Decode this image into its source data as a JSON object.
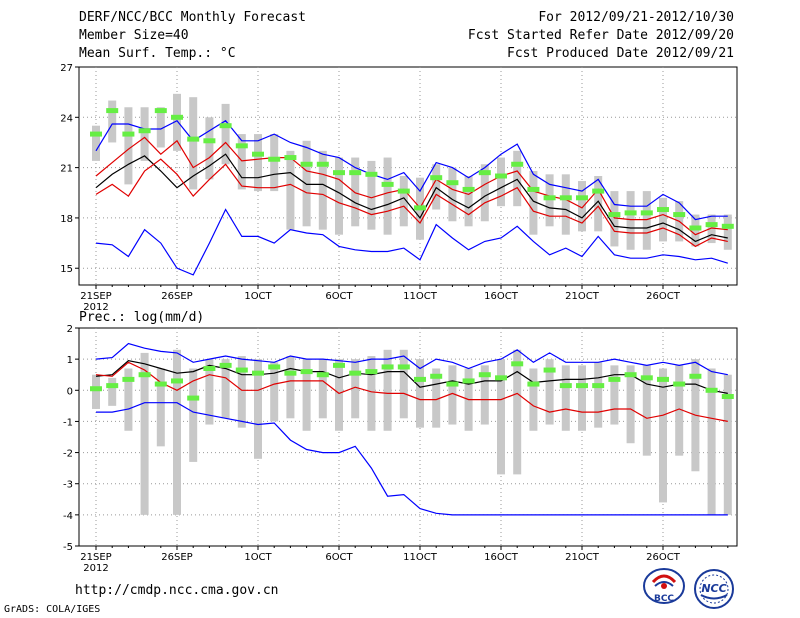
{
  "header": {
    "title": "DERF/NCC/BCC Monthly Forecast",
    "member_size": "Member Size=40",
    "variable": "Mean Surf. Temp.: °C",
    "period": "For 2012/09/21-2012/10/30",
    "refer_date": "Fcst Started Refer Date 2012/09/20",
    "produced_date": "Fcst Produced Date 2012/09/21"
  },
  "footer": {
    "url": "http://cmdp.ncc.cma.gov.cn",
    "credit": "GrADS: COLA/IGES",
    "logo_bcc": "BCC",
    "logo_ncc": "NCC"
  },
  "colors": {
    "max_min_line": "#0000ff",
    "mean_line": "#000000",
    "ctrl_line": "#e00000",
    "box": "#c8c8c8",
    "member_marker": "#66ee44"
  },
  "chart_data": [
    {
      "type": "line",
      "title": "Mean Surf. Temp.: °C",
      "xlabel": "",
      "ylabel": "",
      "ylim": [
        14,
        27
      ],
      "yticks": [
        15,
        18,
        21,
        24,
        27
      ],
      "grid": true,
      "x_tick_labels": [
        "21SEP",
        "26SEP",
        "1OCT",
        "6OCT",
        "11OCT",
        "16OCT",
        "21OCT",
        "26OCT"
      ],
      "x_tick_days": [
        0,
        5,
        10,
        15,
        20,
        25,
        30,
        35
      ],
      "x_year_label": "2012",
      "days": 40,
      "series": [
        {
          "name": "max",
          "color": "#0000ff",
          "values": [
            22.0,
            23.6,
            23.6,
            23.3,
            23.3,
            23.8,
            22.6,
            23.2,
            23.8,
            22.6,
            22.6,
            23.0,
            22.5,
            22.2,
            21.8,
            21.6,
            21.0,
            20.6,
            20.3,
            20.7,
            19.6,
            21.3,
            21.0,
            20.4,
            21.0,
            21.8,
            22.4,
            20.6,
            20.0,
            19.8,
            19.6,
            20.3,
            18.8,
            18.7,
            18.7,
            19.4,
            18.9,
            17.9,
            18.1,
            18.1
          ]
        },
        {
          "name": "upper",
          "color": "#e00000",
          "values": [
            20.5,
            21.3,
            22.1,
            22.8,
            21.8,
            22.6,
            21.0,
            21.6,
            22.5,
            21.4,
            21.5,
            21.6,
            21.6,
            20.8,
            20.6,
            20.3,
            19.5,
            19.2,
            19.5,
            19.7,
            18.6,
            20.3,
            19.7,
            19.4,
            20.0,
            20.5,
            20.8,
            19.6,
            19.3,
            19.1,
            18.6,
            19.7,
            18.0,
            17.9,
            17.9,
            18.2,
            17.8,
            17.0,
            17.4,
            17.3
          ]
        },
        {
          "name": "mean",
          "color": "#000000",
          "values": [
            19.8,
            20.6,
            21.2,
            21.7,
            20.8,
            19.8,
            20.5,
            21.1,
            21.8,
            20.4,
            20.4,
            20.6,
            20.7,
            20.0,
            20.0,
            19.5,
            18.9,
            18.5,
            18.8,
            19.2,
            18.0,
            19.8,
            19.1,
            18.6,
            19.3,
            19.8,
            20.3,
            19.0,
            18.6,
            18.5,
            18.0,
            19.0,
            17.5,
            17.4,
            17.4,
            17.7,
            17.3,
            16.6,
            17.0,
            16.8
          ]
        },
        {
          "name": "lower",
          "color": "#e00000",
          "values": [
            19.4,
            20.0,
            19.3,
            20.8,
            21.5,
            20.6,
            19.3,
            20.3,
            21.2,
            19.9,
            19.8,
            19.8,
            20.0,
            19.5,
            19.4,
            18.9,
            18.6,
            18.2,
            18.4,
            18.7,
            17.7,
            19.4,
            18.8,
            18.2,
            18.9,
            19.3,
            19.8,
            18.4,
            18.1,
            18.1,
            17.7,
            18.7,
            17.2,
            17.1,
            17.1,
            17.4,
            17.0,
            16.3,
            16.8,
            16.6
          ]
        },
        {
          "name": "min",
          "color": "#0000ff",
          "values": [
            16.5,
            16.4,
            15.7,
            17.3,
            16.5,
            15.0,
            14.6,
            16.5,
            18.5,
            16.9,
            16.9,
            16.5,
            17.3,
            17.1,
            17.0,
            16.3,
            16.1,
            16.0,
            16.0,
            16.2,
            15.5,
            17.6,
            16.8,
            16.1,
            16.6,
            16.8,
            17.5,
            16.6,
            15.8,
            16.2,
            15.7,
            16.9,
            15.8,
            15.6,
            15.6,
            15.8,
            15.7,
            15.5,
            15.6,
            15.3
          ]
        }
      ],
      "box_upper": [
        23.5,
        25.0,
        24.6,
        24.6,
        24.6,
        25.4,
        25.2,
        24.0,
        24.8,
        23.0,
        23.0,
        23.0,
        22.0,
        22.6,
        22.0,
        21.6,
        21.6,
        21.4,
        21.6,
        20.5,
        20.4,
        21.2,
        21.0,
        20.5,
        21.2,
        21.6,
        22.0,
        20.8,
        20.6,
        20.6,
        20.2,
        20.5,
        19.6,
        19.6,
        19.6,
        19.2,
        19.0,
        18.2,
        18.2,
        18.2
      ],
      "box_lower": [
        21.4,
        22.5,
        20.0,
        21.4,
        22.2,
        22.0,
        19.7,
        20.3,
        21.2,
        19.7,
        19.6,
        19.6,
        17.3,
        17.5,
        17.3,
        17.0,
        17.5,
        17.3,
        17.0,
        17.5,
        16.7,
        18.5,
        17.8,
        17.5,
        17.8,
        18.7,
        18.7,
        17.0,
        17.5,
        17.0,
        17.2,
        17.2,
        16.3,
        16.1,
        16.1,
        16.6,
        16.6,
        16.3,
        16.5,
        16.1
      ],
      "marker": [
        23.0,
        24.4,
        23.0,
        23.2,
        24.4,
        24.0,
        22.7,
        22.6,
        23.5,
        22.3,
        21.8,
        21.5,
        21.6,
        21.2,
        21.2,
        20.7,
        20.7,
        20.6,
        20.0,
        19.6,
        18.6,
        20.4,
        20.1,
        19.7,
        20.7,
        20.5,
        21.2,
        19.7,
        19.2,
        19.2,
        19.2,
        19.6,
        18.2,
        18.3,
        18.3,
        18.5,
        18.2,
        17.4,
        17.6,
        17.5
      ]
    },
    {
      "type": "line",
      "title": "Prec.: log(mm/d)",
      "xlabel": "",
      "ylabel": "",
      "ylim": [
        -5,
        2
      ],
      "yticks": [
        -5,
        -4,
        -3,
        -2,
        -1,
        0,
        1,
        2
      ],
      "grid": true,
      "x_tick_labels": [
        "21SEP",
        "26SEP",
        "1OCT",
        "6OCT",
        "11OCT",
        "16OCT",
        "21OCT",
        "26OCT"
      ],
      "x_tick_days": [
        0,
        5,
        10,
        15,
        20,
        25,
        30,
        35
      ],
      "x_year_label": "2012",
      "days": 40,
      "series": [
        {
          "name": "max",
          "color": "#0000ff",
          "values": [
            1.0,
            1.05,
            1.5,
            1.35,
            1.25,
            1.2,
            0.9,
            1.0,
            1.1,
            1.0,
            0.95,
            0.9,
            1.1,
            1.0,
            1.0,
            0.95,
            0.9,
            1.0,
            1.0,
            1.1,
            0.7,
            1.0,
            0.9,
            0.7,
            0.9,
            1.0,
            1.3,
            0.9,
            1.2,
            0.9,
            0.9,
            0.9,
            1.0,
            0.9,
            0.8,
            0.9,
            0.8,
            0.9,
            0.6,
            0.5
          ]
        },
        {
          "name": "mean",
          "color": "#000000",
          "values": [
            0.45,
            0.5,
            0.95,
            0.85,
            0.7,
            0.55,
            0.6,
            0.8,
            0.7,
            0.5,
            0.5,
            0.55,
            0.7,
            0.6,
            0.6,
            0.4,
            0.55,
            0.5,
            0.6,
            0.6,
            0.1,
            0.2,
            0.3,
            0.2,
            0.3,
            0.3,
            0.6,
            0.25,
            0.3,
            0.35,
            0.35,
            0.4,
            0.5,
            0.5,
            0.2,
            0.1,
            0.2,
            0.2,
            0.0,
            -0.1
          ]
        },
        {
          "name": "ctrl",
          "color": "#e00000",
          "values": [
            0.5,
            0.45,
            0.9,
            0.65,
            0.25,
            0.0,
            0.3,
            0.5,
            0.4,
            0.0,
            0.0,
            0.2,
            0.3,
            0.3,
            0.3,
            -0.1,
            0.1,
            -0.05,
            -0.1,
            -0.1,
            -0.3,
            -0.3,
            -0.1,
            -0.3,
            -0.3,
            -0.3,
            -0.1,
            -0.5,
            -0.7,
            -0.6,
            -0.7,
            -0.7,
            -0.6,
            -0.6,
            -0.9,
            -0.8,
            -0.6,
            -0.8,
            -0.9,
            -1.0
          ]
        },
        {
          "name": "min",
          "color": "#0000ff",
          "values": [
            -0.7,
            -0.7,
            -0.6,
            -0.4,
            -0.4,
            -0.4,
            -0.7,
            -0.8,
            -0.9,
            -1.0,
            -1.1,
            -1.05,
            -1.6,
            -1.9,
            -2.0,
            -2.0,
            -1.8,
            -2.5,
            -3.4,
            -3.35,
            -3.8,
            -3.95,
            -4.0,
            -4.0,
            -4.0,
            -4.0,
            -4.0,
            -4.0,
            -4.0,
            -4.0,
            -4.0,
            -4.0,
            -4.0,
            -4.0,
            -4.0,
            -4.0,
            -4.0,
            -4.0,
            -4.0,
            -4.0
          ]
        }
      ],
      "box_upper": [
        0.5,
        0.4,
        0.7,
        1.2,
        0.7,
        1.3,
        0.7,
        1.0,
        1.0,
        1.1,
        1.0,
        0.9,
        1.1,
        1.0,
        1.0,
        1.0,
        1.0,
        1.1,
        1.3,
        1.3,
        1.0,
        0.7,
        0.8,
        0.7,
        0.8,
        1.0,
        1.3,
        0.7,
        1.0,
        0.8,
        0.8,
        0.9,
        0.8,
        0.8,
        0.8,
        0.7,
        0.8,
        1.0,
        0.7,
        0.5
      ],
      "box_lower": [
        -0.6,
        -0.5,
        -1.3,
        -4.0,
        -1.8,
        -4.0,
        -2.3,
        -1.1,
        -0.9,
        -1.2,
        -2.2,
        -1.0,
        -0.9,
        -1.3,
        -0.9,
        -1.3,
        -0.9,
        -1.3,
        -1.3,
        -0.9,
        -1.2,
        -1.2,
        -1.1,
        -1.3,
        -1.1,
        -2.7,
        -2.7,
        -1.3,
        -1.1,
        -1.3,
        -1.3,
        -1.2,
        -1.1,
        -1.7,
        -2.1,
        -3.6,
        -2.1,
        -2.6,
        -4.0,
        -4.0
      ],
      "marker": [
        0.05,
        0.15,
        0.35,
        0.5,
        0.2,
        0.3,
        -0.25,
        0.7,
        0.8,
        0.65,
        0.55,
        0.75,
        0.55,
        0.6,
        0.5,
        0.8,
        0.55,
        0.6,
        0.75,
        0.75,
        0.35,
        0.45,
        0.2,
        0.3,
        0.5,
        0.4,
        0.85,
        0.2,
        0.65,
        0.15,
        0.15,
        0.15,
        0.35,
        0.5,
        0.4,
        0.35,
        0.2,
        0.45,
        0.0,
        -0.2
      ]
    }
  ]
}
